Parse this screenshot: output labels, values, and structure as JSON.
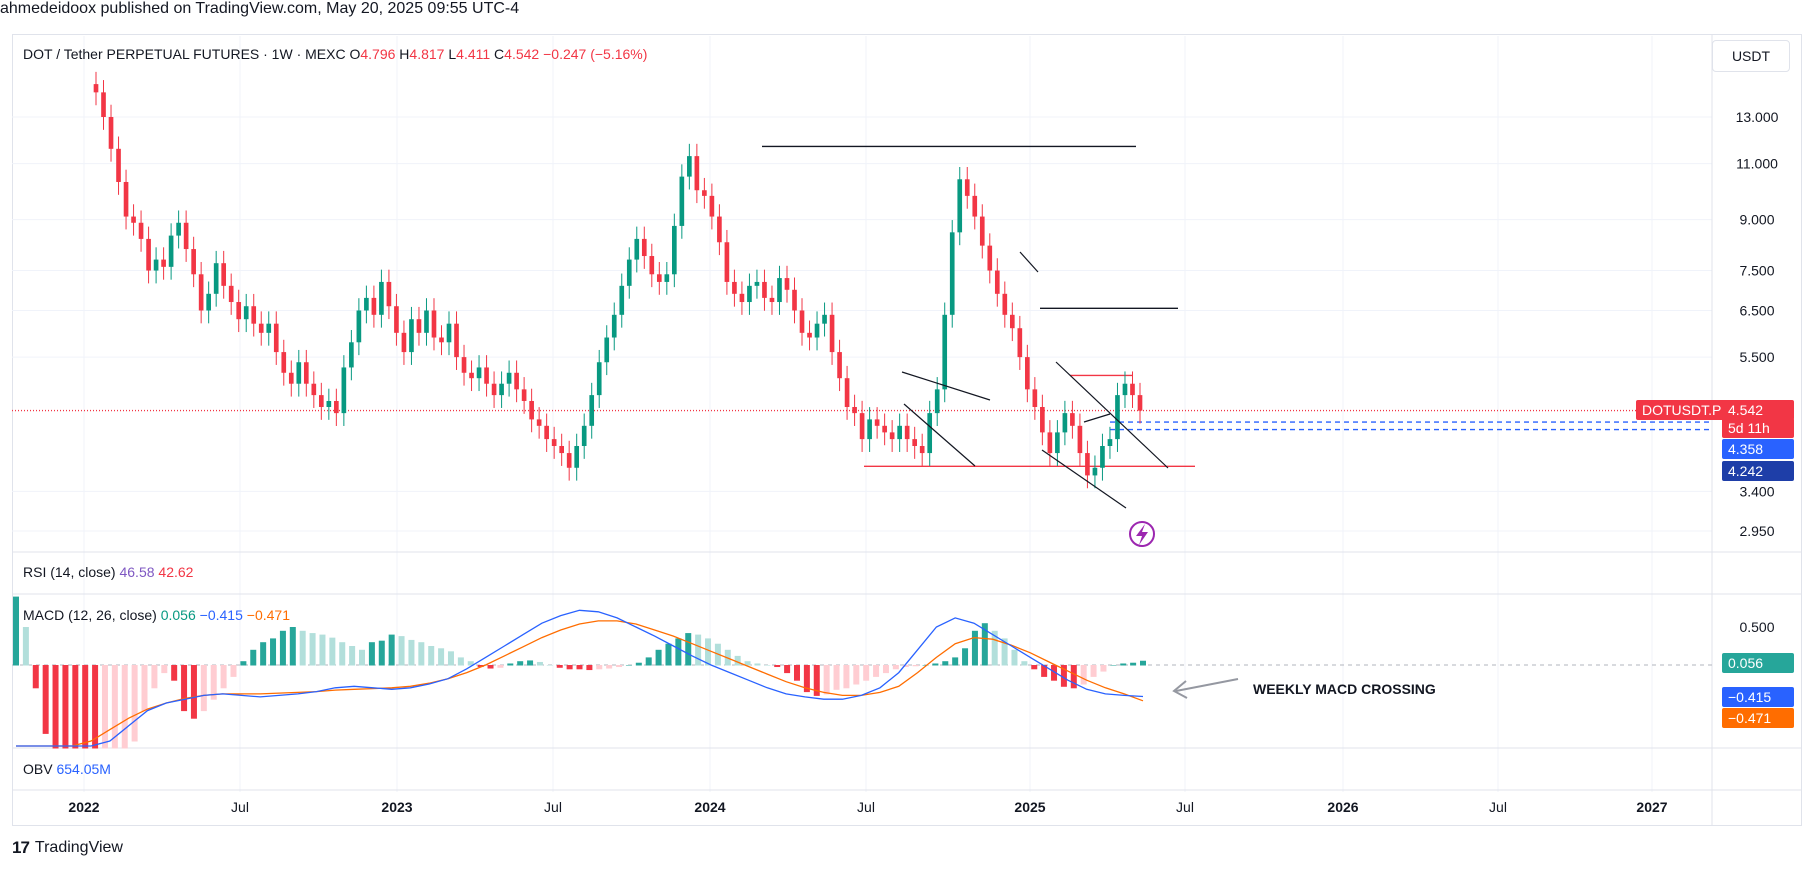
{
  "publisher": "ahmedeidoox published on TradingView.com, May 20, 2025 09:55 UTC-4",
  "footer": {
    "logo_icon": "tradingview-logo-icon",
    "brand": "TradingView"
  },
  "currency_button": "USDT",
  "colors": {
    "up": "#089981",
    "down": "#f23645",
    "rsi": "#7e57c2",
    "macd": "#2962ff",
    "signal": "#ff6d00"
  },
  "legend": {
    "symbol": "DOT / Tether PERPETUAL FUTURES · 1W · MEXC",
    "o_label": "O",
    "o": "4.796",
    "h_label": "H",
    "h": "4.817",
    "l_label": "L",
    "l": "4.411",
    "c_label": "C",
    "c": "4.542",
    "change": "−0.247 (−5.16%)"
  },
  "price_tags": {
    "symbol": "DOTUSDT.P",
    "last": "4.542",
    "countdown": "5d 11h",
    "level1": "4.358",
    "level2": "4.242"
  },
  "rsi": {
    "label": "RSI (14, close)",
    "value": "46.58",
    "ma": "42.62"
  },
  "macd": {
    "label": "MACD (12, 26, close)",
    "hist": "0.056",
    "macd": "−0.415",
    "signal": "−0.471",
    "tag_hist": "0.056",
    "tag_macd": "−0.415",
    "tag_signal": "−0.471",
    "annotation": "WEEKLY MACD CROSSING"
  },
  "obv": {
    "label": "OBV",
    "value": "654.05M"
  },
  "chart_data": {
    "type": "candlestick",
    "title": "DOT / Tether PERPETUAL FUTURES · 1W · MEXC",
    "price_axis": {
      "scale": "log",
      "ticks": [
        13.0,
        11.0,
        9.0,
        7.5,
        6.5,
        5.5,
        3.4,
        2.95
      ],
      "tick_labels": [
        "13.000",
        "11.000",
        "9.000",
        "7.500",
        "6.500",
        "5.500",
        "3.400",
        "2.950"
      ]
    },
    "time_axis": {
      "labels": [
        "2022",
        "Jul",
        "2023",
        "Jul",
        "2024",
        "Jul",
        "2025",
        "Jul",
        "2026",
        "Jul",
        "2027"
      ]
    },
    "grid": true,
    "close_series": [
      14.2,
      13.0,
      11.6,
      10.3,
      9.1,
      8.9,
      8.4,
      7.5,
      7.8,
      7.6,
      8.5,
      8.9,
      8.1,
      7.4,
      6.5,
      6.9,
      7.7,
      7.1,
      6.7,
      6.3,
      6.6,
      6.2,
      6.0,
      6.2,
      5.6,
      5.2,
      5.0,
      5.4,
      5.0,
      4.8,
      4.6,
      4.7,
      4.5,
      5.3,
      5.8,
      6.5,
      6.8,
      6.4,
      7.2,
      6.6,
      6.0,
      5.6,
      6.3,
      6.0,
      6.5,
      5.9,
      5.8,
      6.2,
      5.5,
      5.2,
      5.1,
      5.3,
      5.0,
      4.8,
      5.0,
      5.2,
      4.9,
      4.7,
      4.4,
      4.3,
      4.1,
      4.0,
      3.9,
      3.7,
      4.0,
      4.3,
      4.8,
      5.4,
      5.9,
      6.4,
      7.1,
      7.8,
      8.4,
      7.9,
      7.4,
      7.2,
      7.4,
      8.8,
      10.5,
      11.3,
      10.0,
      9.8,
      9.1,
      8.3,
      7.2,
      6.9,
      6.7,
      7.1,
      7.2,
      6.8,
      6.7,
      7.3,
      7.0,
      6.5,
      6.0,
      5.9,
      6.2,
      6.4,
      5.6,
      5.1,
      4.6,
      4.5,
      4.1,
      4.4,
      4.3,
      4.2,
      4.1,
      4.3,
      4.1,
      4.0,
      3.9,
      4.5,
      4.9,
      6.4,
      8.6,
      10.4,
      9.8,
      9.1,
      8.2,
      7.5,
      6.9,
      6.4,
      6.1,
      5.5,
      4.9,
      4.6,
      4.2,
      3.9,
      4.2,
      4.5,
      4.3,
      3.9,
      3.6,
      3.7,
      4.0,
      4.1,
      4.8,
      5.0,
      4.8,
      4.54
    ],
    "horizontal_levels": [
      {
        "value": 11.7,
        "color": "#131722"
      },
      {
        "value": 6.55,
        "color": "#131722"
      },
      {
        "value": 5.15,
        "color": "#f23645"
      },
      {
        "value": 3.72,
        "color": "#f23645"
      },
      {
        "value": 4.358,
        "color": "#2962ff",
        "style": "dashed"
      },
      {
        "value": 4.242,
        "color": "#2962ff",
        "style": "dashed"
      },
      {
        "value": 4.542,
        "color": "#f23645",
        "style": "dotted"
      }
    ],
    "macd_axis": {
      "ticks": [
        0.5
      ],
      "tick_labels": [
        "0.500"
      ]
    },
    "macd_hist": [
      0.9,
      0.5,
      -0.3,
      -0.9,
      -1.4,
      -1.7,
      -1.9,
      -2.0,
      -2.0,
      -1.9,
      -1.7,
      -1.5,
      -1.0,
      -0.6,
      -0.3,
      -0.1,
      -0.2,
      -0.6,
      -0.7,
      -0.6,
      -0.45,
      -0.3,
      -0.15,
      0.05,
      0.2,
      0.3,
      0.35,
      0.45,
      0.5,
      0.45,
      0.42,
      0.4,
      0.36,
      0.3,
      0.25,
      0.2,
      0.3,
      0.32,
      0.4,
      0.38,
      0.33,
      0.3,
      0.25,
      0.22,
      0.18,
      0.1,
      0.05,
      -0.02,
      -0.04,
      -0.03,
      0.02,
      0.05,
      0.06,
      0.04,
      0.0,
      -0.03,
      -0.05,
      -0.05,
      -0.06,
      -0.05,
      -0.04,
      -0.02,
      0.0,
      0.03,
      0.1,
      0.2,
      0.28,
      0.35,
      0.42,
      0.4,
      0.35,
      0.28,
      0.2,
      0.12,
      0.05,
      0.02,
      0.0,
      -0.02,
      -0.1,
      -0.2,
      -0.35,
      -0.4,
      -0.38,
      -0.32,
      -0.3,
      -0.25,
      -0.2,
      -0.15,
      -0.1,
      -0.05,
      -0.02,
      -0.01,
      0.0,
      0.02,
      0.05,
      0.1,
      0.22,
      0.45,
      0.55,
      0.45,
      0.35,
      0.2,
      0.05,
      -0.05,
      -0.15,
      -0.2,
      -0.28,
      -0.3,
      -0.25,
      -0.15,
      -0.08,
      0.0,
      0.02,
      0.03,
      0.056
    ],
    "macd_line": [
      -2.4,
      -2.2,
      -1.9,
      -1.6,
      -1.3,
      -1.0,
      -0.8,
      -0.6,
      -0.5,
      -0.45,
      -0.4,
      -0.38,
      -0.4,
      -0.42,
      -0.4,
      -0.38,
      -0.35,
      -0.3,
      -0.28,
      -0.3,
      -0.32,
      -0.3,
      -0.25,
      -0.18,
      -0.05,
      0.1,
      0.25,
      0.4,
      0.55,
      0.65,
      0.72,
      0.7,
      0.62,
      0.5,
      0.38,
      0.25,
      0.12,
      0.0,
      -0.1,
      -0.2,
      -0.3,
      -0.38,
      -0.42,
      -0.45,
      -0.45,
      -0.4,
      -0.3,
      -0.1,
      0.2,
      0.5,
      0.62,
      0.55,
      0.4,
      0.25,
      0.1,
      -0.05,
      -0.2,
      -0.32,
      -0.38,
      -0.4,
      -0.415
    ],
    "signal_line": [
      -2.1,
      -1.8,
      -1.5,
      -1.25,
      -1.0,
      -0.85,
      -0.7,
      -0.58,
      -0.5,
      -0.44,
      -0.4,
      -0.38,
      -0.38,
      -0.38,
      -0.37,
      -0.36,
      -0.35,
      -0.33,
      -0.32,
      -0.31,
      -0.3,
      -0.28,
      -0.24,
      -0.18,
      -0.1,
      0.0,
      0.12,
      0.24,
      0.36,
      0.46,
      0.54,
      0.58,
      0.58,
      0.54,
      0.46,
      0.38,
      0.28,
      0.18,
      0.08,
      -0.02,
      -0.12,
      -0.22,
      -0.3,
      -0.36,
      -0.4,
      -0.4,
      -0.36,
      -0.28,
      -0.1,
      0.1,
      0.28,
      0.36,
      0.34,
      0.26,
      0.16,
      0.04,
      -0.08,
      -0.2,
      -0.3,
      -0.38,
      -0.471
    ]
  }
}
